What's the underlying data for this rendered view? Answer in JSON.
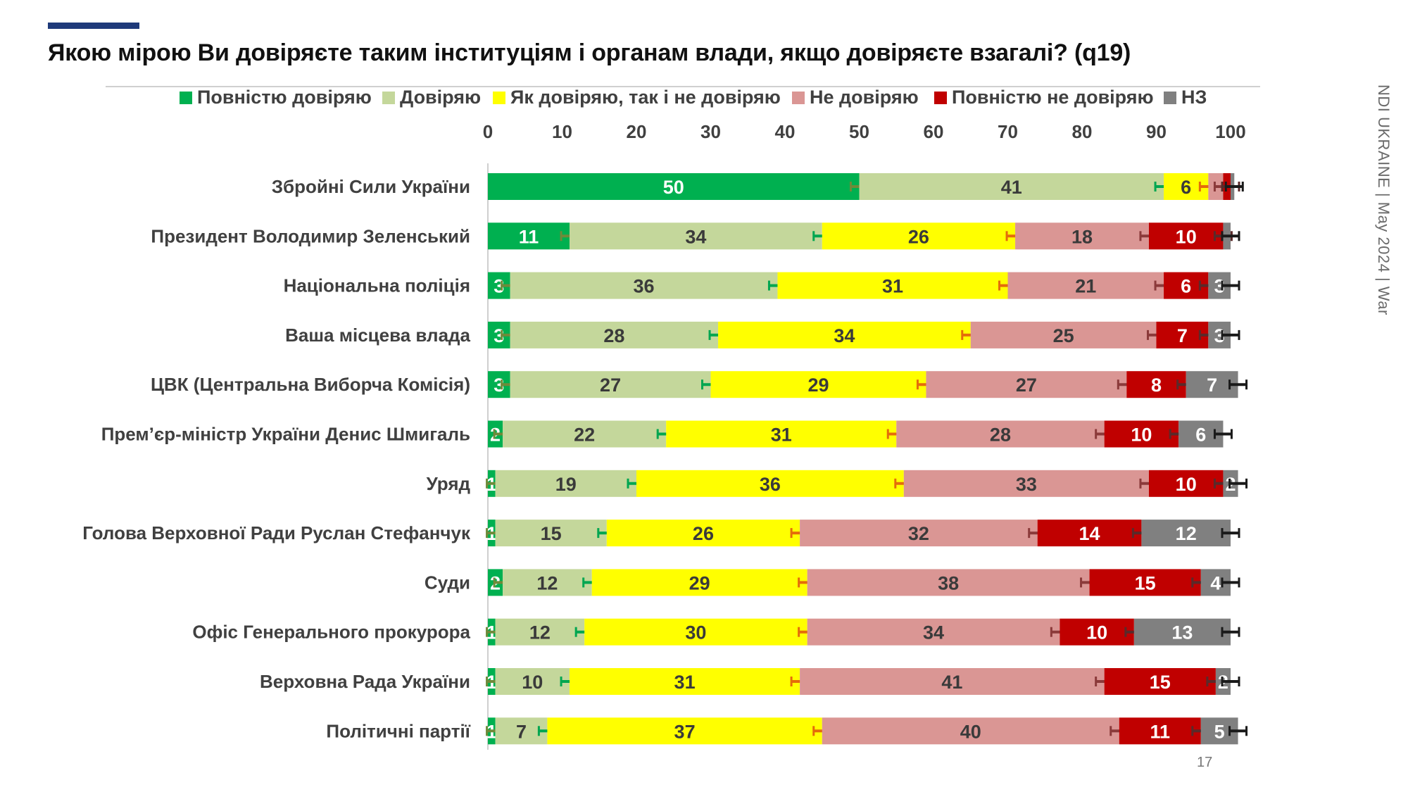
{
  "slide": {
    "title": "Якою мірою Ви довіряєте таким інституціям і органам влади, якщо довіряєте взагалі? (q19)",
    "side_label": "NDI UKRAINE | May 2024 | War",
    "page_number": "17",
    "accent_color": "#1f3a7a"
  },
  "chart_data": {
    "type": "bar",
    "orientation": "horizontal-stacked",
    "title": "Якою мірою Ви довіряєте таким інституціям і органам влади, якщо довіряєте взагалі? (q19)",
    "xlim": [
      0,
      100
    ],
    "xticks": [
      0,
      10,
      20,
      30,
      40,
      50,
      60,
      70,
      80,
      90,
      100
    ],
    "legend_position": "top",
    "error_bars": true,
    "series": [
      {
        "name": "Повністю довіряю",
        "color": "#00b050",
        "text_color": "#ffffff",
        "errbar_color": "#6f8a3a",
        "values": [
          50,
          11,
          3,
          3,
          3,
          2,
          1,
          1,
          2,
          1,
          1,
          1
        ]
      },
      {
        "name": "Довіряю",
        "color": "#c4d79b",
        "text_color": "#3a3a3a",
        "errbar_color": "#00a650",
        "values": [
          41,
          34,
          36,
          28,
          27,
          22,
          19,
          15,
          12,
          12,
          10,
          7
        ]
      },
      {
        "name": "Як довіряю, так і не довіряю",
        "color": "#ffff00",
        "text_color": "#3a3a3a",
        "errbar_color": "#e46c0a",
        "values": [
          6,
          26,
          31,
          34,
          29,
          31,
          36,
          26,
          29,
          30,
          31,
          37
        ]
      },
      {
        "name": "Не довіряю",
        "color": "#da9694",
        "text_color": "#3a3a3a",
        "errbar_color": "#8b3a3a",
        "values": [
          2,
          18,
          21,
          25,
          27,
          28,
          33,
          32,
          38,
          34,
          41,
          40
        ]
      },
      {
        "name": "Повністю не довіряю",
        "color": "#c00000",
        "text_color": "#ffffff",
        "errbar_color": "#5a2a2a",
        "values": [
          1,
          10,
          6,
          7,
          8,
          10,
          10,
          14,
          15,
          10,
          15,
          11
        ]
      },
      {
        "name": "НЗ",
        "color": "#808080",
        "text_color": "#ffffff",
        "errbar_color": "#1a1a1a",
        "values": [
          0.5,
          1,
          3,
          3,
          7,
          6,
          2,
          12,
          4,
          13,
          2,
          5
        ]
      }
    ],
    "label_values": [
      [
        "50",
        "41",
        "6",
        "",
        "",
        ""
      ],
      [
        "11",
        "34",
        "26",
        "18",
        "10",
        ""
      ],
      [
        "3",
        "36",
        "31",
        "21",
        "6",
        "3"
      ],
      [
        "3",
        "28",
        "34",
        "25",
        "7",
        "3"
      ],
      [
        "3",
        "27",
        "29",
        "27",
        "8",
        "7"
      ],
      [
        "2",
        "22",
        "31",
        "28",
        "10",
        "6"
      ],
      [
        "1",
        "19",
        "36",
        "33",
        "10",
        "2"
      ],
      [
        "1",
        "15",
        "26",
        "32",
        "14",
        "12"
      ],
      [
        "2",
        "12",
        "29",
        "38",
        "15",
        "4"
      ],
      [
        "1",
        "12",
        "30",
        "34",
        "10",
        "13"
      ],
      [
        "1",
        "10",
        "31",
        "41",
        "15",
        "2"
      ],
      [
        "1",
        "7",
        "37",
        "40",
        "11",
        "5"
      ]
    ],
    "categories": [
      "Збройні Сили України",
      "Президент Володимир Зеленський",
      "Національна поліція",
      "Ваша місцева влада",
      "ЦВК (Центральна Виборча Комісія)",
      "Прем’єр-міністр України Денис Шмигаль",
      "Уряд",
      "Голова Верховної Ради Руслан Стефанчук",
      "Суди",
      "Офіс Генерального прокурора",
      "Верховна Рада України",
      "Політичні партії"
    ]
  }
}
